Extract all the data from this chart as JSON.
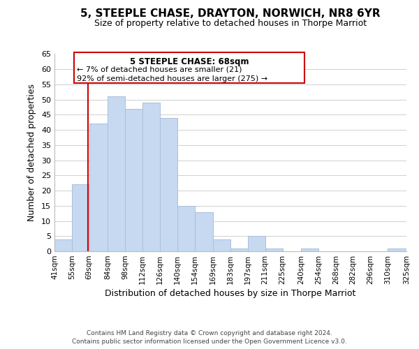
{
  "title": "5, STEEPLE CHASE, DRAYTON, NORWICH, NR8 6YR",
  "subtitle": "Size of property relative to detached houses in Thorpe Marriot",
  "xlabel": "Distribution of detached houses by size in Thorpe Marriot",
  "ylabel": "Number of detached properties",
  "bar_edges": [
    41,
    55,
    69,
    84,
    98,
    112,
    126,
    140,
    154,
    169,
    183,
    197,
    211,
    225,
    240,
    254,
    268,
    282,
    296,
    310,
    325
  ],
  "bar_labels": [
    "41sqm",
    "55sqm",
    "69sqm",
    "84sqm",
    "98sqm",
    "112sqm",
    "126sqm",
    "140sqm",
    "154sqm",
    "169sqm",
    "183sqm",
    "197sqm",
    "211sqm",
    "225sqm",
    "240sqm",
    "254sqm",
    "268sqm",
    "282sqm",
    "296sqm",
    "310sqm",
    "325sqm"
  ],
  "bar_heights": [
    4,
    22,
    42,
    51,
    47,
    49,
    44,
    15,
    13,
    4,
    1,
    5,
    1,
    0,
    1,
    0,
    0,
    0,
    0,
    1
  ],
  "bar_color": "#c6d9f1",
  "bar_edgecolor": "#aabfd8",
  "vline_x": 68,
  "vline_color": "#cc0000",
  "ylim": [
    0,
    65
  ],
  "yticks": [
    0,
    5,
    10,
    15,
    20,
    25,
    30,
    35,
    40,
    45,
    50,
    55,
    60,
    65
  ],
  "annotation_title": "5 STEEPLE CHASE: 68sqm",
  "annotation_line1": "← 7% of detached houses are smaller (21)",
  "annotation_line2": "92% of semi-detached houses are larger (275) →",
  "annotation_box_color": "#ffffff",
  "annotation_border_color": "#cc0000",
  "footer_line1": "Contains HM Land Registry data © Crown copyright and database right 2024.",
  "footer_line2": "Contains public sector information licensed under the Open Government Licence v3.0.",
  "background_color": "#ffffff",
  "grid_color": "#d0d0d0"
}
